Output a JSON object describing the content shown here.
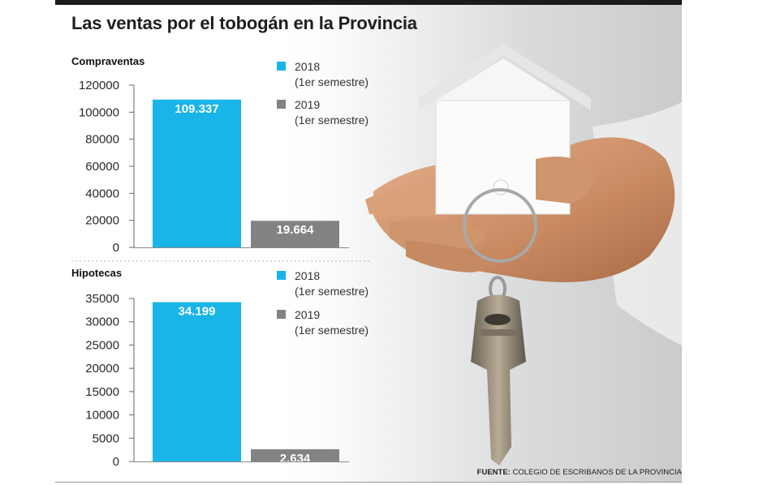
{
  "title": "Las ventas por el tobogán en la Provincia",
  "source": {
    "label": "FUENTE:",
    "text": "COLEGIO DE ESCRIBANOS DE LA PROVINCIA"
  },
  "colors": {
    "series_2018": "#1ab5e8",
    "series_2019": "#838383"
  },
  "chart_data": [
    {
      "type": "bar",
      "title": "Compraventas",
      "categories": [
        "2018 (1er semestre)",
        "2019 (1er semestre)"
      ],
      "values": [
        109337,
        19664
      ],
      "data_labels": [
        "109.337",
        "19.664"
      ],
      "ylim": [
        0,
        120000
      ],
      "yticks": [
        0,
        20000,
        40000,
        60000,
        80000,
        100000,
        120000
      ],
      "legend": [
        {
          "label": "2018",
          "sublabel": "(1er semestre)"
        },
        {
          "label": "2019",
          "sublabel": "(1er semestre)"
        }
      ]
    },
    {
      "type": "bar",
      "title": "Hipotecas",
      "categories": [
        "2018 (1er semestre)",
        "2019 (1er semestre)"
      ],
      "values": [
        34199,
        2634
      ],
      "data_labels": [
        "34.199",
        "2.634"
      ],
      "ylim": [
        0,
        35000
      ],
      "yticks": [
        0,
        5000,
        10000,
        15000,
        20000,
        25000,
        30000,
        35000
      ],
      "legend": [
        {
          "label": "2018",
          "sublabel": "(1er semestre)"
        },
        {
          "label": "2019",
          "sublabel": "(1er semestre)"
        }
      ]
    }
  ]
}
